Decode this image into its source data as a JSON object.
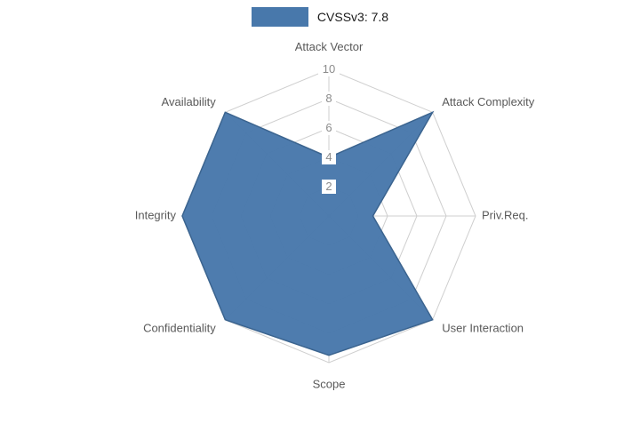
{
  "legend": {
    "series_label": "CVSSv3: 7.8"
  },
  "chart_data": {
    "type": "radar",
    "title": "",
    "categories": [
      "Attack Vector",
      "Attack Complexity",
      "Priv.Req.",
      "User Interaction",
      "Scope",
      "Confidentiality",
      "Integrity",
      "Availability"
    ],
    "series": [
      {
        "name": "CVSSv3: 7.8",
        "values": [
          4,
          10,
          3,
          10,
          9.5,
          10,
          10,
          10
        ]
      }
    ],
    "radial_ticks": [
      2,
      4,
      6,
      8,
      10
    ],
    "rlim": [
      0,
      10
    ],
    "grid": true,
    "legend_position": "top-center",
    "colors": {
      "fill": "#4878ab",
      "stroke": "#3b648f",
      "grid": "#cfcfcf",
      "tick_label": "#8c8c8c",
      "tick_label_bg": "#ffffff",
      "category_label": "#595959",
      "legend_text": "#1a1a1a"
    }
  }
}
